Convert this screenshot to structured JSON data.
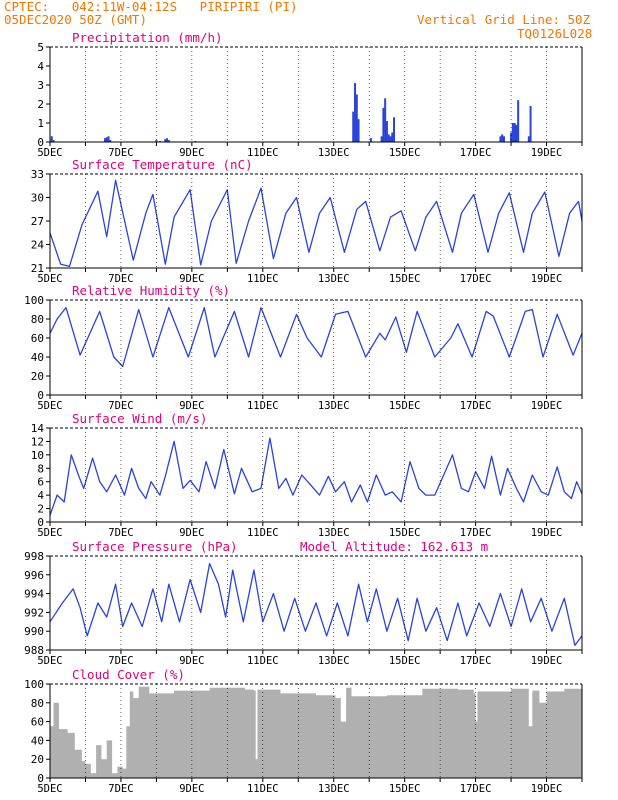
{
  "header": {
    "line1_left": "CPTEC:   042:11W-04:12S   PIRIPIRI (PI)",
    "line2_left": "05DEC2020 50Z (GMT)",
    "line1_right": "Vertical Grid Line: 50Z",
    "line2_right": "TQ0126L028"
  },
  "colors": {
    "header": "#f07800",
    "panel_title": "#e0007a",
    "series": "#2a44d8",
    "cloud_fill": "#b0b0b0",
    "axis": "#000000",
    "grid": "#000000"
  },
  "x_tick_labels": [
    "5DEC",
    "7DEC",
    "9DEC",
    "11DEC",
    "13DEC",
    "15DEC",
    "17DEC",
    "19DEC"
  ],
  "x_range_days": [
    5,
    20
  ],
  "chart_data": [
    {
      "id": "precip",
      "type": "bar",
      "title": "Precipitation (mm/h)",
      "ylim": [
        0,
        5
      ],
      "yticks": [
        0,
        1,
        2,
        3,
        4,
        5
      ],
      "x": [
        5.05,
        5.1,
        6.55,
        6.6,
        6.65,
        6.7,
        8.0,
        8.1,
        8.25,
        8.3,
        8.35,
        9.1,
        13.55,
        13.6,
        13.65,
        13.7,
        14.05,
        14.35,
        14.4,
        14.45,
        14.5,
        14.55,
        14.6,
        14.65,
        14.7,
        17.7,
        17.75,
        17.8,
        18.0,
        18.05,
        18.1,
        18.15,
        18.2,
        18.5,
        18.55
      ],
      "values": [
        0.3,
        0.1,
        0.2,
        0.25,
        0.3,
        0.1,
        0.1,
        0.05,
        0.15,
        0.2,
        0.1,
        0.05,
        1.6,
        3.1,
        2.5,
        1.2,
        0.2,
        0.3,
        1.8,
        2.3,
        1.1,
        0.4,
        0.3,
        0.5,
        1.3,
        0.3,
        0.4,
        0.3,
        0.5,
        1.0,
        1.0,
        0.9,
        2.2,
        0.3,
        1.9
      ]
    },
    {
      "id": "temp",
      "type": "line",
      "title": "Surface Temperature (nC)",
      "ylim": [
        21,
        33
      ],
      "yticks": [
        21,
        24,
        27,
        30,
        33
      ],
      "x": [
        5.0,
        5.3,
        5.55,
        5.9,
        6.35,
        6.6,
        6.85,
        7.35,
        7.7,
        7.9,
        8.25,
        8.5,
        8.95,
        9.25,
        9.55,
        10.0,
        10.25,
        10.6,
        10.95,
        11.3,
        11.65,
        11.95,
        12.3,
        12.6,
        12.9,
        13.3,
        13.65,
        13.9,
        14.3,
        14.6,
        14.9,
        15.3,
        15.6,
        15.9,
        16.35,
        16.6,
        16.95,
        17.35,
        17.65,
        17.95,
        18.35,
        18.6,
        18.95,
        19.35,
        19.65,
        19.9,
        20.0
      ],
      "values": [
        25.5,
        21.5,
        21.2,
        26.5,
        30.8,
        25.0,
        32.2,
        22.0,
        28.0,
        30.4,
        21.5,
        27.5,
        31.0,
        21.4,
        27.0,
        31.0,
        21.6,
        27.0,
        31.2,
        22.2,
        28.0,
        30.0,
        23.0,
        28.0,
        30.0,
        23.0,
        28.5,
        29.5,
        23.2,
        27.5,
        28.3,
        23.2,
        27.5,
        29.5,
        23.0,
        28.0,
        30.4,
        23.0,
        28.0,
        30.6,
        23.0,
        28.0,
        30.7,
        22.5,
        28.0,
        29.5,
        27.0
      ]
    },
    {
      "id": "rh",
      "type": "line",
      "title": "Relative Humidity (%)",
      "ylim": [
        0,
        100
      ],
      "yticks": [
        0,
        20,
        40,
        60,
        80,
        100
      ],
      "x": [
        5.0,
        5.2,
        5.45,
        5.85,
        6.4,
        6.8,
        7.05,
        7.5,
        7.9,
        8.35,
        8.9,
        9.35,
        9.65,
        10.2,
        10.6,
        10.95,
        11.5,
        11.95,
        12.25,
        12.65,
        13.05,
        13.4,
        13.9,
        14.3,
        14.45,
        14.75,
        15.05,
        15.35,
        15.85,
        16.3,
        16.5,
        16.9,
        17.3,
        17.5,
        17.95,
        18.4,
        18.6,
        18.9,
        19.3,
        19.75,
        20.0
      ],
      "values": [
        65,
        80,
        92,
        42,
        88,
        40,
        30,
        90,
        40,
        92,
        40,
        92,
        40,
        88,
        40,
        92,
        40,
        85,
        60,
        40,
        85,
        88,
        40,
        65,
        58,
        82,
        45,
        88,
        40,
        60,
        75,
        40,
        88,
        83,
        40,
        88,
        90,
        40,
        85,
        42,
        65
      ]
    },
    {
      "id": "wind",
      "type": "line",
      "title": "Surface Wind (m/s)",
      "ylim": [
        0,
        14
      ],
      "yticks": [
        0,
        2,
        4,
        6,
        8,
        10,
        12,
        14
      ],
      "x": [
        5.0,
        5.2,
        5.4,
        5.6,
        5.8,
        5.95,
        6.2,
        6.4,
        6.6,
        6.85,
        7.1,
        7.3,
        7.5,
        7.7,
        7.85,
        8.1,
        8.25,
        8.5,
        8.75,
        8.95,
        9.2,
        9.4,
        9.65,
        9.9,
        10.2,
        10.4,
        10.7,
        10.95,
        11.2,
        11.45,
        11.65,
        11.85,
        12.1,
        12.35,
        12.6,
        12.85,
        13.05,
        13.3,
        13.5,
        13.75,
        13.95,
        14.2,
        14.45,
        14.65,
        14.9,
        15.15,
        15.4,
        15.6,
        15.85,
        16.1,
        16.35,
        16.6,
        16.8,
        17.0,
        17.25,
        17.45,
        17.7,
        17.9,
        18.15,
        18.35,
        18.6,
        18.85,
        19.05,
        19.3,
        19.5,
        19.7,
        19.85,
        20.0
      ],
      "values": [
        1.0,
        4.0,
        3.0,
        10.0,
        7.0,
        5.0,
        9.5,
        6.0,
        4.5,
        7.0,
        4.0,
        8.0,
        5.0,
        3.5,
        6.0,
        4.0,
        6.8,
        12.0,
        5.0,
        6.2,
        4.5,
        9.0,
        5.0,
        10.8,
        4.2,
        8.0,
        4.5,
        5.0,
        12.5,
        5.0,
        6.5,
        4.0,
        7.0,
        5.5,
        4.0,
        6.8,
        4.5,
        6.0,
        3.0,
        5.5,
        3.0,
        7.0,
        4.0,
        4.5,
        3.0,
        9.0,
        5.0,
        4.0,
        4.0,
        7.0,
        10.0,
        5.0,
        4.5,
        7.5,
        5.0,
        9.8,
        4.0,
        8.0,
        5.0,
        3.0,
        7.0,
        4.5,
        4.0,
        8.2,
        4.5,
        3.5,
        6.0,
        4.2
      ]
    },
    {
      "id": "pressure",
      "type": "line",
      "title": "Surface Pressure (hPa)",
      "extra_label": "Model Altitude: 162.613 m",
      "ylim": [
        988,
        998
      ],
      "yticks": [
        988,
        990,
        992,
        994,
        996,
        998
      ],
      "x": [
        5.0,
        5.35,
        5.65,
        5.85,
        6.05,
        6.35,
        6.6,
        6.85,
        7.05,
        7.3,
        7.6,
        7.9,
        8.15,
        8.35,
        8.65,
        8.95,
        9.25,
        9.5,
        9.75,
        9.95,
        10.15,
        10.45,
        10.75,
        11.0,
        11.3,
        11.6,
        11.9,
        12.2,
        12.5,
        12.8,
        13.1,
        13.4,
        13.7,
        13.95,
        14.2,
        14.5,
        14.8,
        15.1,
        15.35,
        15.6,
        15.9,
        16.2,
        16.5,
        16.75,
        17.1,
        17.4,
        17.7,
        18.0,
        18.3,
        18.55,
        18.85,
        19.15,
        19.5,
        19.8,
        20.0
      ],
      "values": [
        991.0,
        993.0,
        994.5,
        992.5,
        989.5,
        993.0,
        991.5,
        995.0,
        990.5,
        993.0,
        990.5,
        994.5,
        991.0,
        995.0,
        991.0,
        995.5,
        992.0,
        997.2,
        995.0,
        991.5,
        996.5,
        991.0,
        996.5,
        991.0,
        994.0,
        990.0,
        993.5,
        990.0,
        993.0,
        989.5,
        993.0,
        989.5,
        995.0,
        991.0,
        994.5,
        990.0,
        993.5,
        989.0,
        993.5,
        990.0,
        992.5,
        989.0,
        993.0,
        989.5,
        993.0,
        990.5,
        994.0,
        990.5,
        994.5,
        991.0,
        993.5,
        990.0,
        993.5,
        988.5,
        989.5
      ]
    },
    {
      "id": "cloud",
      "type": "area",
      "title": "Cloud Cover (%)",
      "ylim": [
        0,
        100
      ],
      "yticks": [
        0,
        20,
        40,
        60,
        80,
        100
      ],
      "x": [
        5.0,
        5.1,
        5.25,
        5.5,
        5.7,
        5.9,
        6.0,
        6.15,
        6.3,
        6.45,
        6.6,
        6.75,
        6.9,
        7.05,
        7.15,
        7.25,
        7.35,
        7.5,
        7.8,
        8.5,
        9.5,
        10.5,
        10.75,
        10.8,
        10.85,
        11.5,
        12.5,
        13.05,
        13.2,
        13.35,
        13.5,
        14.5,
        15.5,
        16.5,
        16.95,
        17.0,
        17.05,
        18.0,
        18.4,
        18.5,
        18.6,
        18.8,
        19.0,
        19.5,
        20.0
      ],
      "values": [
        55,
        80,
        52,
        48,
        30,
        18,
        15,
        5,
        35,
        20,
        40,
        5,
        12,
        10,
        55,
        92,
        85,
        97,
        90,
        93,
        96,
        94,
        93,
        20,
        94,
        90,
        88,
        85,
        60,
        96,
        87,
        88,
        95,
        94,
        90,
        60,
        92,
        95,
        95,
        55,
        93,
        80,
        92,
        95,
        90
      ]
    }
  ]
}
